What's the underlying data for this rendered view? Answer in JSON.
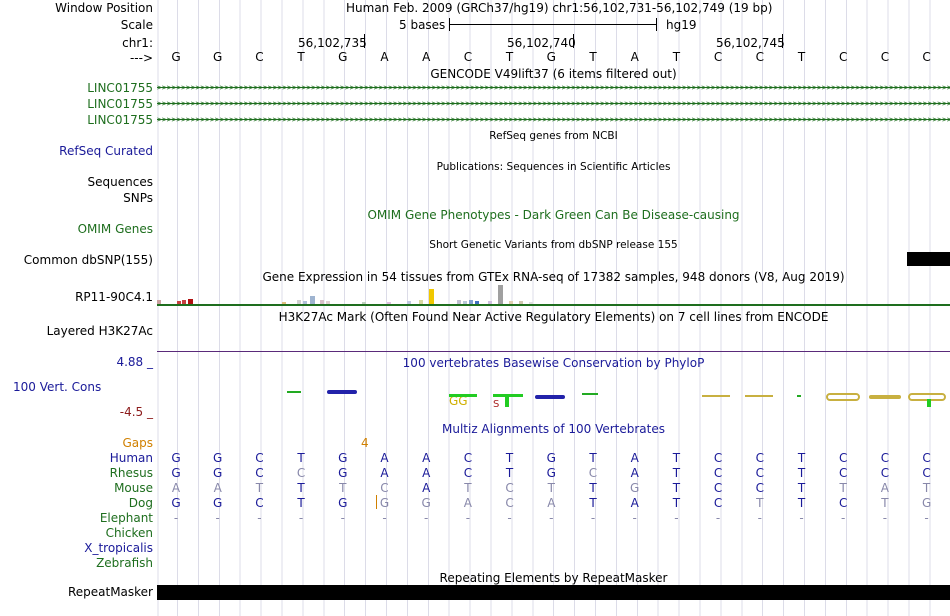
{
  "header": {
    "window_position_label": "Window Position",
    "window_position_text": "Human Feb. 2009 (GRCh37/hg19)   chr1:56,102,731-56,102,749 (19 bp)",
    "scale_label": "Scale",
    "scale_text": "5 bases",
    "scale_assembly": "hg19",
    "chrom_label": "chr1:",
    "arrow_label": "--->",
    "positions": [
      "56,102,735",
      "56,102,740",
      "56,102,745"
    ]
  },
  "bases": [
    "G",
    "G",
    "C",
    "T",
    "G",
    "A",
    "A",
    "C",
    "T",
    "G",
    "T",
    "A",
    "T",
    "C",
    "C",
    "T",
    "C",
    "C",
    "C"
  ],
  "tracks": {
    "gencode_title": "GENCODE V49lift37 (6 items filtered out)",
    "gencode_items": [
      "LINC01755",
      "LINC01755",
      "LINC01755"
    ],
    "refseq_title": "RefSeq genes from NCBI",
    "refseq_label": "RefSeq Curated",
    "publications_title": "Publications: Sequences in Scientific Articles",
    "sequences_label": "Sequences",
    "snps_label": "SNPs",
    "omim_title": "OMIM Gene Phenotypes - Dark Green Can Be Disease-causing",
    "omim_label": "OMIM Genes",
    "dbsnp_title": "Short Genetic Variants from dbSNP release 155",
    "dbsnp_label": "Common dbSNP(155)",
    "gtex_title": "Gene Expression in 54 tissues from GTEx RNA-seq of 17382 samples, 948 donors (V8, Aug 2019)",
    "gtex_label": "RP11-90C4.1",
    "h3k27ac_title": "H3K27Ac Mark (Often Found Near Active Regulatory Elements) on 7 cell lines from ENCODE",
    "h3k27ac_label": "Layered H3K27Ac",
    "cons_title": "100 vertebrates Basewise Conservation by PhyloP",
    "cons_label": "100 Vert. Cons",
    "cons_max": "4.88 _",
    "cons_min": "-4.5 _",
    "multiz_title": "Multiz Alignments of 100 Vertebrates",
    "gaps_label": "Gaps",
    "gaps_value": "4",
    "repeat_title": "Repeating Elements by RepeatMasker",
    "repeat_label": "RepeatMasker"
  },
  "alignment": {
    "species": [
      "Human",
      "Rhesus",
      "Mouse",
      "Dog",
      "Elephant",
      "Chicken",
      "X_tropicalis",
      "Zebrafish"
    ],
    "rows": [
      [
        "G",
        "G",
        "C",
        "T",
        "G",
        "A",
        "A",
        "C",
        "T",
        "G",
        "T",
        "A",
        "T",
        "C",
        "C",
        "T",
        "C",
        "C",
        "C"
      ],
      [
        "G",
        "G",
        "C",
        "C",
        "G",
        "A",
        "A",
        "C",
        "T",
        "G",
        "C",
        "A",
        "T",
        "C",
        "C",
        "T",
        "C",
        "C",
        "C"
      ],
      [
        "A",
        "A",
        "T",
        "T",
        "T",
        "C",
        "A",
        "T",
        "C",
        "T",
        "T",
        "G",
        "T",
        "C",
        "C",
        "T",
        "T",
        "A",
        "T"
      ],
      [
        "G",
        "G",
        "C",
        "T",
        "G",
        "G",
        "G",
        "A",
        "C",
        "A",
        "T",
        "A",
        "T",
        "C",
        "T",
        "T",
        "C",
        "T",
        "G"
      ],
      [
        "-",
        "-",
        "-",
        "-",
        "-",
        "-",
        "-",
        "-",
        "-",
        "-",
        "-",
        "-",
        "-",
        "-",
        "-",
        "-",
        "-",
        "-",
        "-"
      ]
    ],
    "dim": [
      [
        0,
        0,
        0,
        0,
        0,
        0,
        0,
        0,
        0,
        0,
        0,
        0,
        0,
        0,
        0,
        0,
        0,
        0,
        0
      ],
      [
        0,
        0,
        0,
        1,
        0,
        0,
        0,
        0,
        0,
        0,
        1,
        0,
        0,
        0,
        0,
        0,
        0,
        0,
        0
      ],
      [
        1,
        1,
        1,
        0,
        1,
        1,
        0,
        1,
        1,
        1,
        0,
        1,
        0,
        0,
        0,
        0,
        1,
        1,
        1
      ],
      [
        0,
        0,
        0,
        0,
        0,
        1,
        1,
        1,
        1,
        1,
        0,
        0,
        0,
        0,
        1,
        0,
        0,
        1,
        1
      ],
      [
        1,
        1,
        1,
        1,
        1,
        1,
        1,
        1,
        1,
        1,
        1,
        1,
        1,
        1,
        1,
        1,
        1,
        1,
        1
      ]
    ]
  },
  "colors": {
    "label_blue": "#1a1a99",
    "label_green": "#1e6e1e",
    "cons_red": "#8b1a1a",
    "gaps_orange": "#d08000",
    "h3k_purple": "#5a2a7a",
    "dim_base": "#8888aa"
  }
}
